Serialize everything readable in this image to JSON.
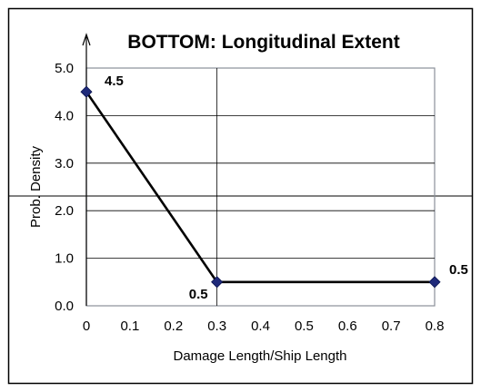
{
  "chart_data": {
    "type": "line",
    "title": "BOTTOM: Longitudinal Extent",
    "xlabel": "Damage Length/Ship Length",
    "ylabel": "Prob. Density",
    "xlim": [
      0,
      0.8
    ],
    "ylim": [
      0,
      5
    ],
    "x_ticks": [
      "0",
      "0.1",
      "0.2",
      "0.3",
      "0.4",
      "0.5",
      "0.6",
      "0.7",
      "0.8"
    ],
    "y_ticks": [
      "0.0",
      "1.0",
      "2.0",
      "3.0",
      "4.0",
      "5.0"
    ],
    "grid": true,
    "series": [
      {
        "x": [
          0,
          0.3,
          0.8
        ],
        "y": [
          4.5,
          0.5,
          0.5
        ],
        "labels": [
          "4.5",
          "0.5",
          "0.5"
        ],
        "marker": "diamond",
        "marker_color": "#1f2a7a",
        "line_color": "#000000"
      }
    ]
  }
}
